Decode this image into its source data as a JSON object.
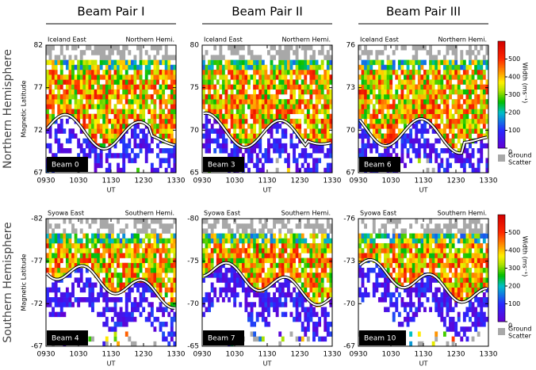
{
  "column_titles": [
    "Beam Pair I",
    "Beam Pair II",
    "Beam Pair III"
  ],
  "row_titles": [
    "Northern Hemisphere",
    "Southern Hemisphere"
  ],
  "colorbar": {
    "title": "Width (ms⁻¹)",
    "lim": [
      0,
      600
    ],
    "ticks": [
      0,
      100,
      200,
      300,
      400,
      500
    ],
    "ground_label": [
      "Ground",
      "Scatter"
    ]
  },
  "chart_data": [
    {
      "type": "heatmap",
      "site": "Iceland East",
      "hemisphere": "Northern Hemi.",
      "beam_label": "Beam 0",
      "ylabel": "Magnetic Latitude",
      "xlabel": "UT",
      "xlim": [
        9.5,
        13.5
      ],
      "xticks": [
        {
          "value": 9.5,
          "label": "0930"
        },
        {
          "value": 10.5,
          "label": "1030"
        },
        {
          "value": 11.5,
          "label": "1130"
        },
        {
          "value": 12.5,
          "label": "1230"
        },
        {
          "value": 13.5,
          "label": "1330"
        }
      ],
      "ylim": [
        67,
        82
      ],
      "yticks": [
        67,
        72,
        77,
        82
      ]
    },
    {
      "type": "heatmap",
      "site": "Iceland East",
      "hemisphere": "Northern Hemi.",
      "beam_label": "Beam 3",
      "xlabel": "UT",
      "xlim": [
        9.5,
        13.5
      ],
      "xticks": [
        {
          "value": 9.5,
          "label": "0930"
        },
        {
          "value": 10.5,
          "label": "1030"
        },
        {
          "value": 11.5,
          "label": "1130"
        },
        {
          "value": 12.5,
          "label": "1230"
        },
        {
          "value": 13.5,
          "label": "1330"
        }
      ],
      "ylim": [
        65,
        80
      ],
      "yticks": [
        65,
        70,
        75,
        80
      ]
    },
    {
      "type": "heatmap",
      "site": "Iceland East",
      "hemisphere": "Northern Hemi.",
      "beam_label": "Beam 6",
      "xlabel": "UT",
      "xlim": [
        9.5,
        13.5
      ],
      "xticks": [
        {
          "value": 9.5,
          "label": "0930"
        },
        {
          "value": 10.5,
          "label": "1030"
        },
        {
          "value": 11.5,
          "label": "1130"
        },
        {
          "value": 12.5,
          "label": "1230"
        },
        {
          "value": 13.5,
          "label": "1330"
        }
      ],
      "ylim": [
        67,
        76
      ],
      "yticks": [
        67,
        70,
        73,
        76
      ]
    },
    {
      "type": "heatmap",
      "site": "Syowa East",
      "hemisphere": "Southern Hemi.",
      "beam_label": "Beam 4",
      "ylabel": "Magnetic Latitude",
      "xlabel": "UT",
      "xlim": [
        9.5,
        13.5
      ],
      "xticks": [
        {
          "value": 9.5,
          "label": "0930"
        },
        {
          "value": 10.5,
          "label": "1030"
        },
        {
          "value": 11.5,
          "label": "1130"
        },
        {
          "value": 12.5,
          "label": "1230"
        },
        {
          "value": 13.5,
          "label": "1330"
        }
      ],
      "ylim": [
        -67,
        -82
      ],
      "yticks": [
        -82,
        -77,
        -72,
        -67
      ]
    },
    {
      "type": "heatmap",
      "site": "Syowa East",
      "hemisphere": "Southern Hemi.",
      "beam_label": "Beam 7",
      "xlabel": "UT",
      "xlim": [
        9.5,
        13.5
      ],
      "xticks": [
        {
          "value": 9.5,
          "label": "0930"
        },
        {
          "value": 10.5,
          "label": "1030"
        },
        {
          "value": 11.5,
          "label": "1130"
        },
        {
          "value": 12.5,
          "label": "1230"
        },
        {
          "value": 13.5,
          "label": "1330"
        }
      ],
      "ylim": [
        -65,
        -80
      ],
      "yticks": [
        -80,
        -75,
        -70,
        -65
      ]
    },
    {
      "type": "heatmap",
      "site": "Syowa East",
      "hemisphere": "Southern Hemi.",
      "beam_label": "Beam 10",
      "xlabel": "UT",
      "xlim": [
        9.5,
        13.5
      ],
      "xticks": [
        {
          "value": 9.5,
          "label": "0930"
        },
        {
          "value": 10.5,
          "label": "1030"
        },
        {
          "value": 11.5,
          "label": "1130"
        },
        {
          "value": 12.5,
          "label": "1230"
        },
        {
          "value": 13.5,
          "label": "1330"
        }
      ],
      "ylim": [
        -67,
        -76
      ],
      "yticks": [
        -76,
        -73,
        -70,
        -67
      ]
    }
  ]
}
